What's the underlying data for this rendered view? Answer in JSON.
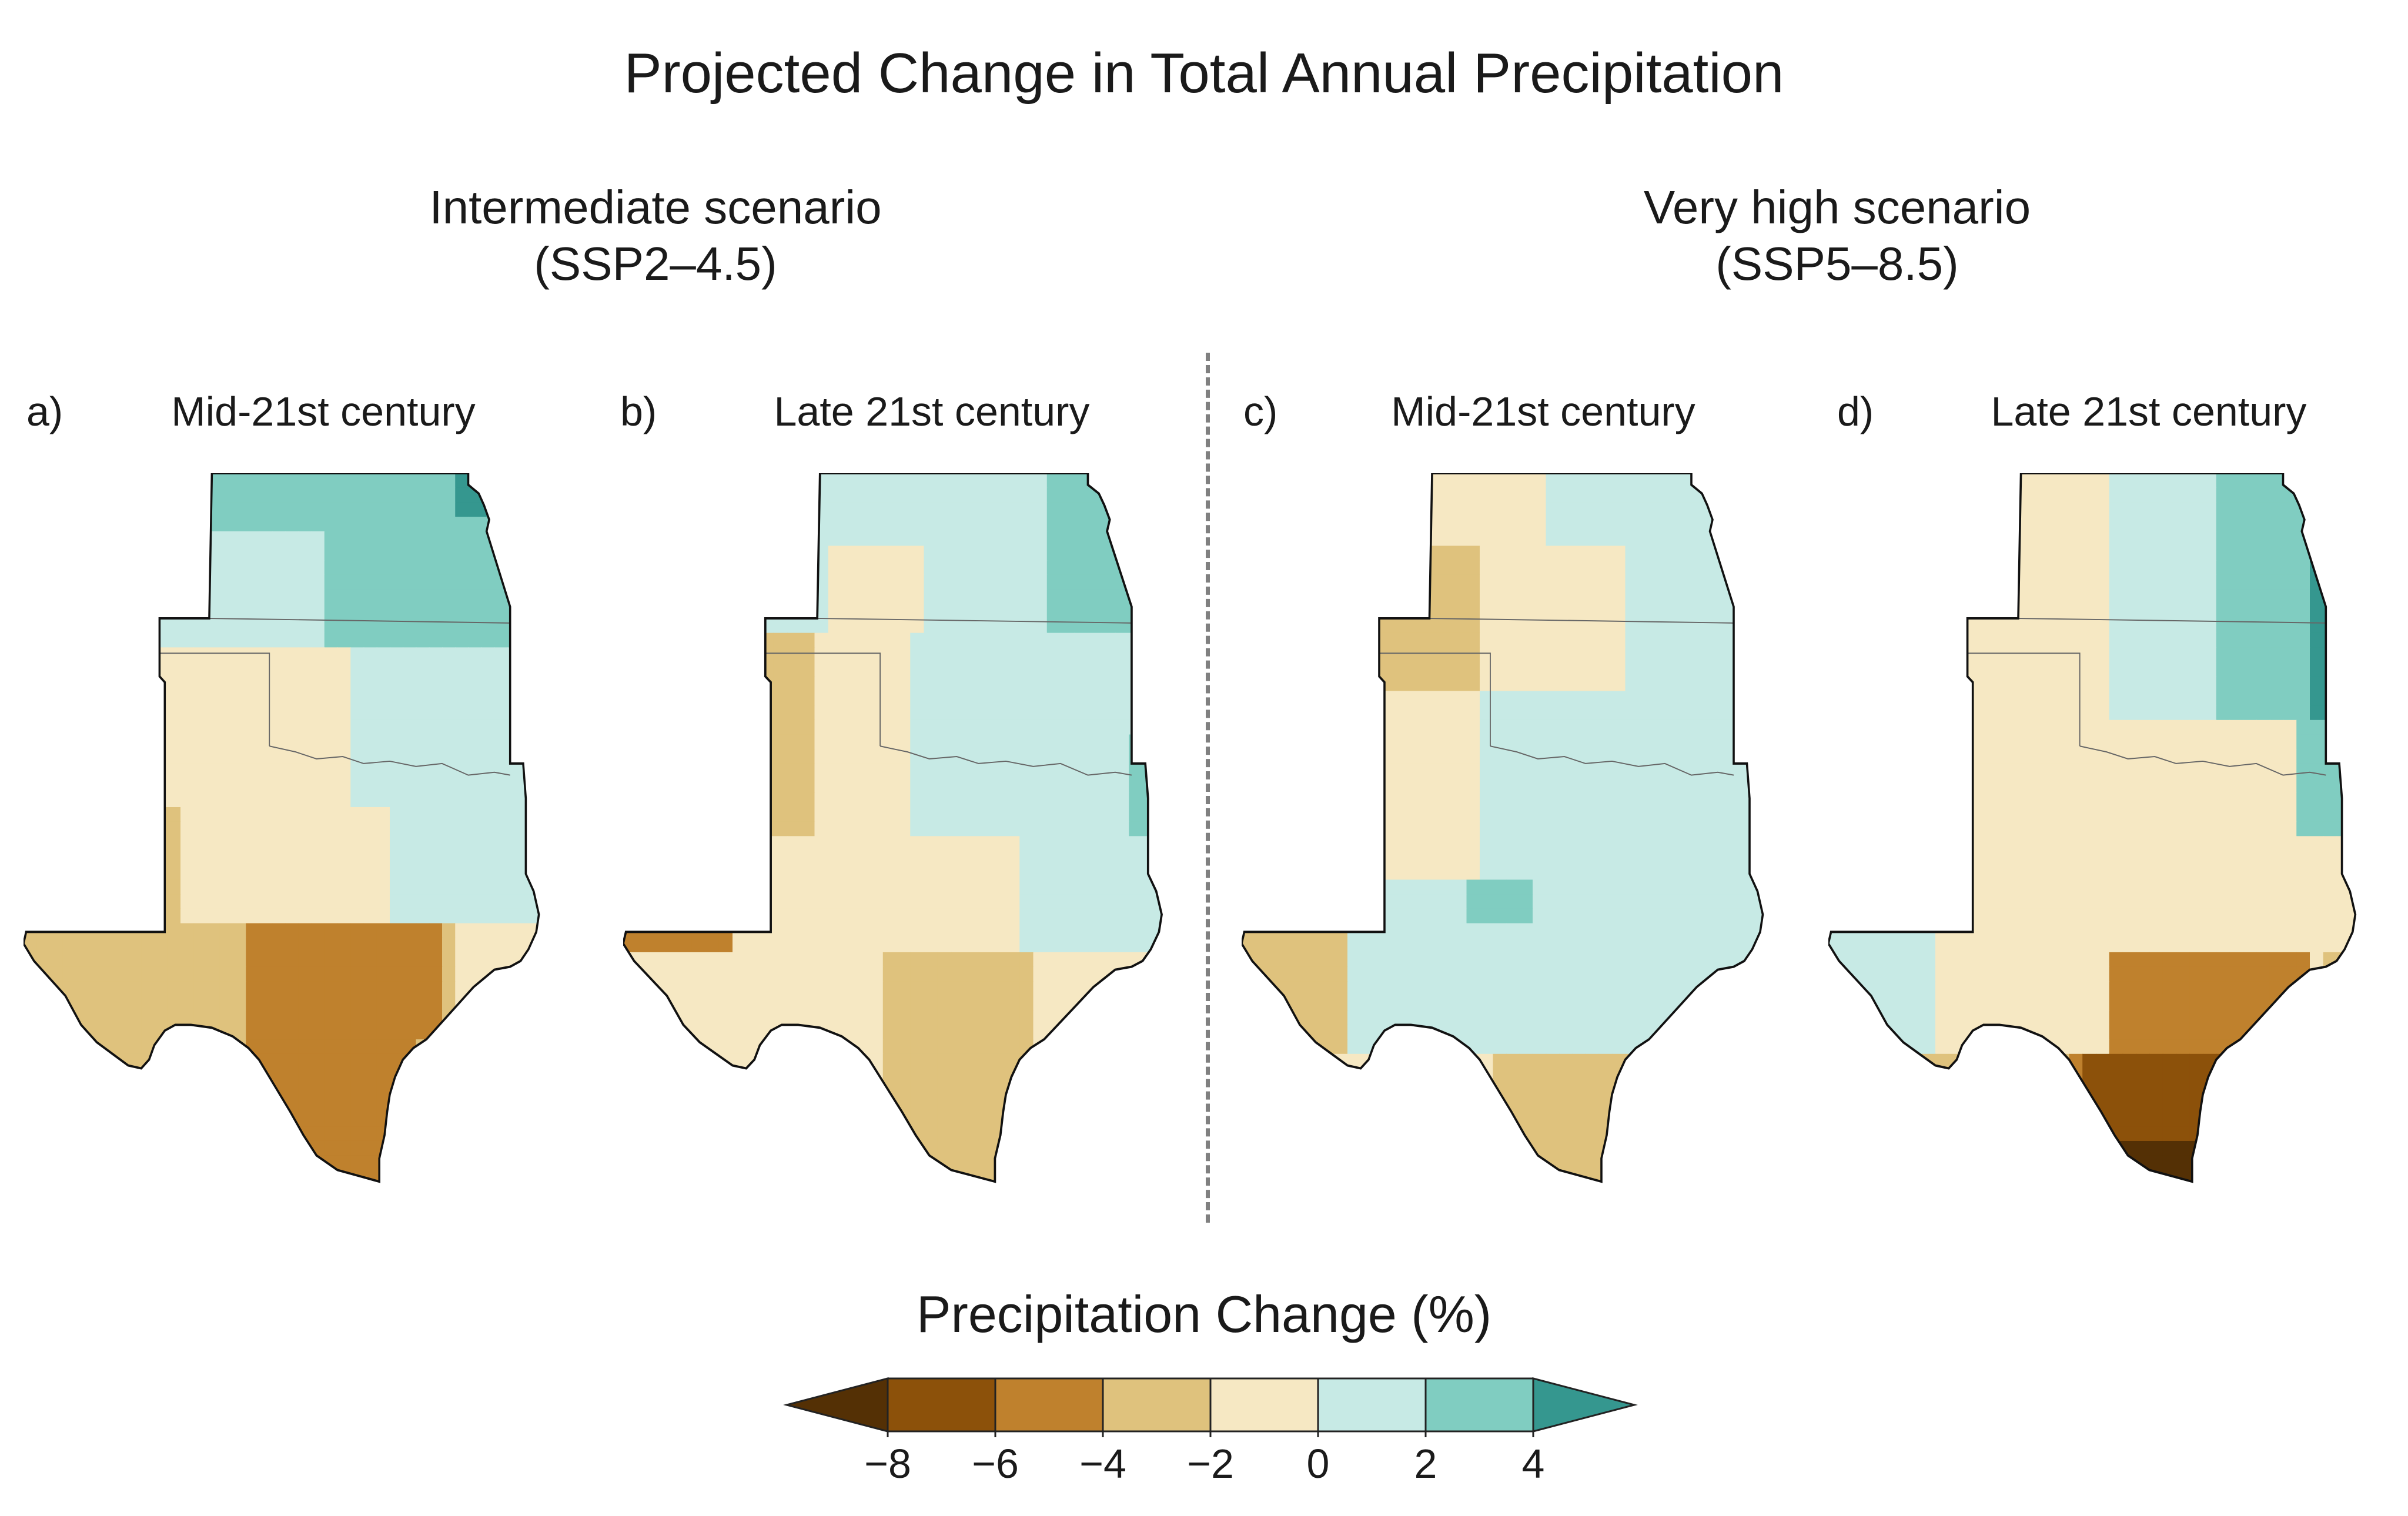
{
  "title": "Projected Change in Total Annual Precipitation",
  "scenarios": [
    {
      "line1": "Intermediate scenario",
      "line2": "(SSP2–4.5)"
    },
    {
      "line1": "Very high scenario",
      "line2": "(SSP5–8.5)"
    }
  ],
  "panels": [
    {
      "letter": "a)",
      "title": "Mid-21st century"
    },
    {
      "letter": "b)",
      "title": "Late 21st century"
    },
    {
      "letter": "c)",
      "title": "Mid-21st century"
    },
    {
      "letter": "d)",
      "title": "Late 21st century"
    }
  ],
  "legend": {
    "title": "Precipitation Change (%)",
    "ticks": [
      "−8",
      "−6",
      "−4",
      "−2",
      "0",
      "2",
      "4"
    ],
    "colors": {
      "under": "#543005",
      "bins": [
        "#8c510a",
        "#bf812d",
        "#dfc27d",
        "#f6e8c3",
        "#c7eae5",
        "#80cdc1"
      ],
      "over": "#35978f"
    }
  }
}
